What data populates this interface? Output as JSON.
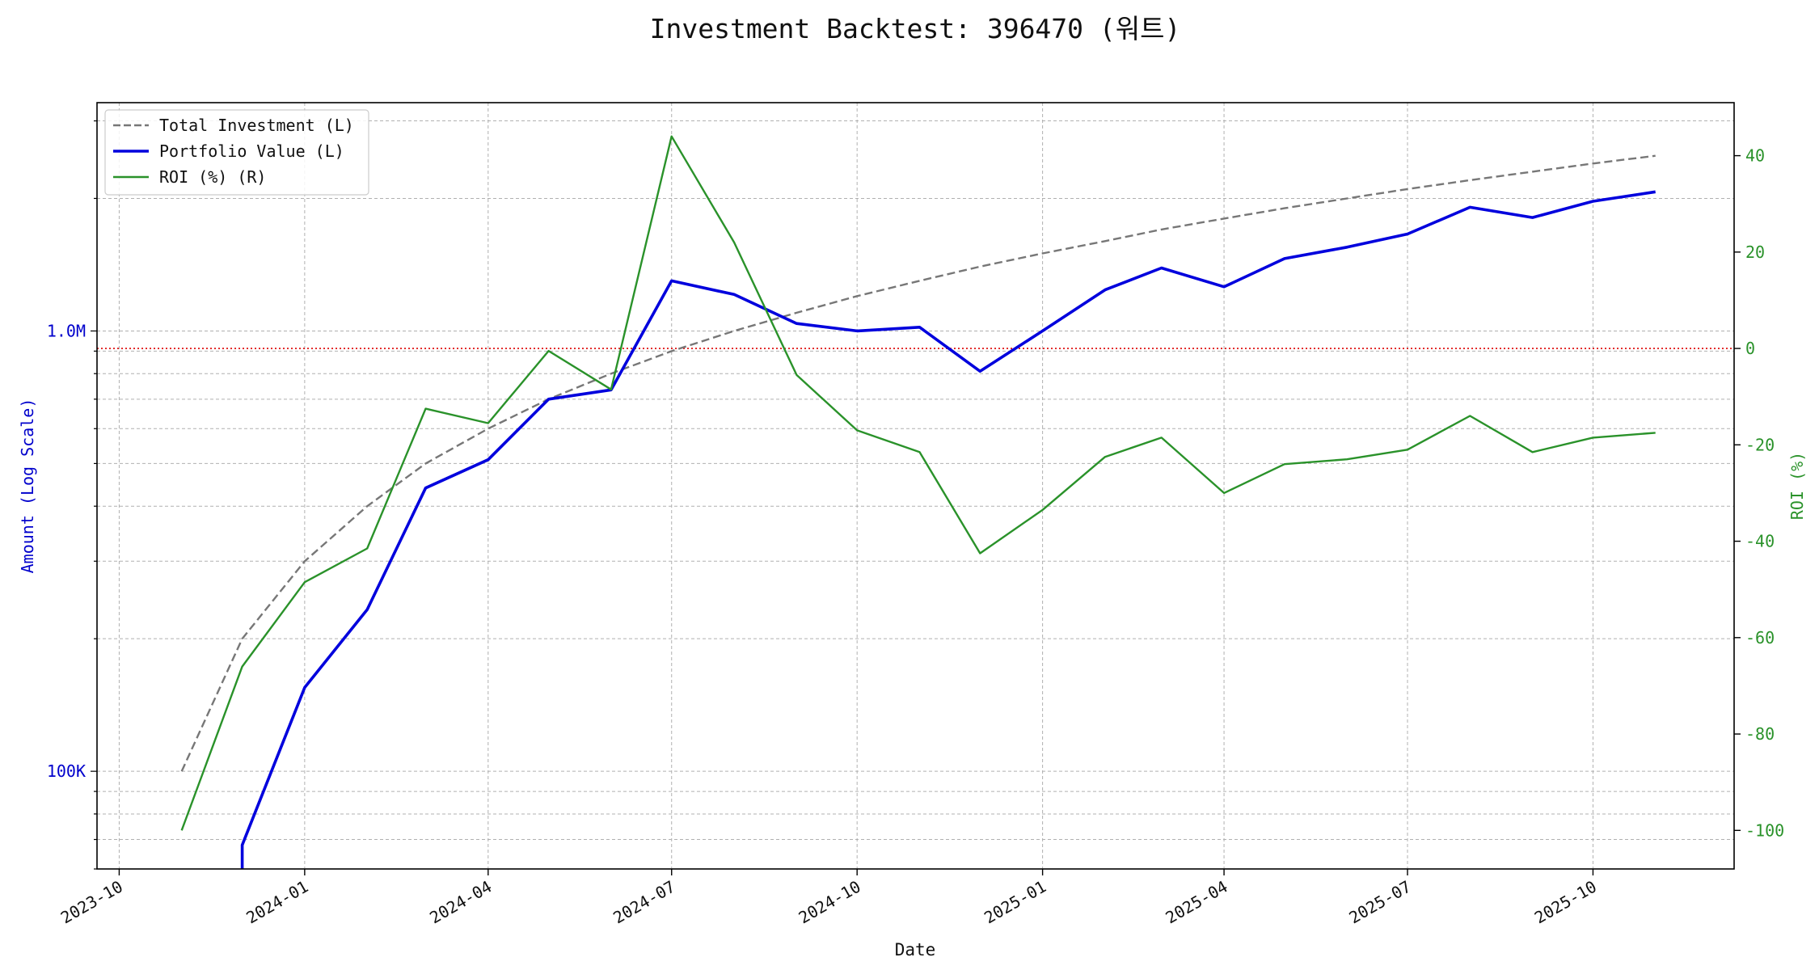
{
  "chart_data": {
    "type": "line",
    "title": "Investment Backtest: 396470 (워트)",
    "xlabel": "Date",
    "ylabel_left": "Amount (Log Scale)",
    "ylabel_right": "ROI (%)",
    "y_left_scale": "log",
    "y_left_range": [
      60000,
      3300000
    ],
    "y_left_ticks": [
      {
        "value": 100000,
        "label": "100K"
      },
      {
        "value": 1000000,
        "label": "1.0M"
      }
    ],
    "y_right_range": [
      -108,
      51
    ],
    "y_right_ticks": [
      -100,
      -80,
      -60,
      -40,
      -20,
      0,
      20,
      40
    ],
    "x_range": [
      "2023-09-20",
      "2025-12-10"
    ],
    "x_ticks": [
      "2023-10",
      "2024-01",
      "2024-04",
      "2024-07",
      "2024-10",
      "2025-01",
      "2025-04",
      "2025-07",
      "2025-10"
    ],
    "reference_line": {
      "axis": "right",
      "value": 0,
      "color": "#dd0000",
      "style": "dotted"
    },
    "grid": true,
    "legend_position": "top-left",
    "x": [
      "2023-11-01",
      "2023-12-01",
      "2024-01-01",
      "2024-02-01",
      "2024-03-01",
      "2024-04-01",
      "2024-05-01",
      "2024-06-01",
      "2024-07-01",
      "2024-08-01",
      "2024-09-01",
      "2024-10-01",
      "2024-11-01",
      "2024-12-01",
      "2025-01-01",
      "2025-02-01",
      "2025-03-01",
      "2025-04-01",
      "2025-05-01",
      "2025-06-01",
      "2025-07-01",
      "2025-08-01",
      "2025-09-01",
      "2025-10-01",
      "2025-11-01"
    ],
    "series": [
      {
        "name": "Total Investment (L)",
        "axis": "left",
        "color": "#777777",
        "style": "dashed",
        "values": [
          100000,
          200000,
          300000,
          400000,
          500000,
          600000,
          700000,
          800000,
          900000,
          1000000,
          1100000,
          1200000,
          1300000,
          1400000,
          1500000,
          1600000,
          1700000,
          1800000,
          1900000,
          2000000,
          2100000,
          2200000,
          2300000,
          2400000,
          2500000
        ]
      },
      {
        "name": "Portfolio Value (L)",
        "axis": "left",
        "color": "#0000dd",
        "style": "solid",
        "values": [
          null,
          68000,
          155000,
          233000,
          440000,
          510000,
          700000,
          735000,
          1300000,
          1210000,
          1040000,
          1000000,
          1020000,
          810000,
          1000000,
          1240000,
          1390000,
          1260000,
          1460000,
          1550000,
          1660000,
          1910000,
          1810000,
          1970000,
          2070000
        ]
      },
      {
        "name": "ROI (%) (R)",
        "axis": "right",
        "color": "#2a922a",
        "style": "solid",
        "values": [
          -100,
          -66,
          -48.5,
          -41.5,
          -12.5,
          -15.5,
          -0.5,
          -8.5,
          44,
          22,
          -5.5,
          -17,
          -21.5,
          -42.5,
          -33.5,
          -22.5,
          -18.5,
          -30,
          -24,
          -23,
          -21,
          -14,
          -21.5,
          -18.5,
          -17.5
        ]
      }
    ]
  }
}
